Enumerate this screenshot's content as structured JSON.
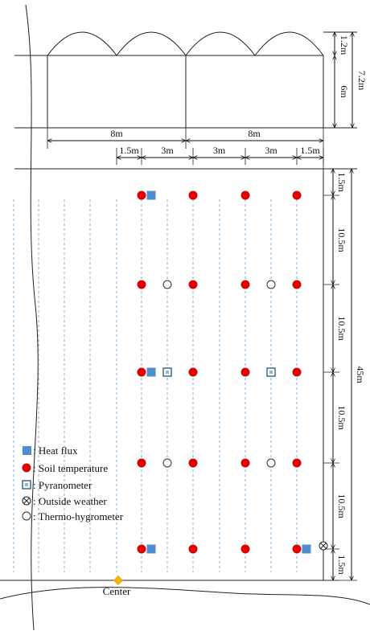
{
  "dimensions": {
    "arch_height": "1.2m",
    "wall_height": "6m",
    "total_height": "7.2m",
    "span_left": "8m",
    "span_right": "8m",
    "spacings": [
      "1.5m",
      "3m",
      "3m",
      "3m",
      "1.5m"
    ],
    "length_segments": [
      "1.5m",
      "10.5m",
      "10.5m",
      "10.5m",
      "10.5m",
      "1.5m"
    ],
    "total_length": "45m"
  },
  "legend": {
    "heat_flux": ": Heat flux",
    "soil_temperature": ": Soil temperature",
    "pyranometer": ": Pyranometer",
    "outside_weather": ": Outside weather",
    "thermo_hygrometer": ": Thermo-hygrometer"
  },
  "center_label": "Center",
  "colors": {
    "heat_flux": "#4f8fd1",
    "soil_temperature": "#e00000",
    "pyranometer": "#3a6f8f",
    "crop_rows": "#7fb0dd",
    "center_marker": "#f4b400"
  }
}
